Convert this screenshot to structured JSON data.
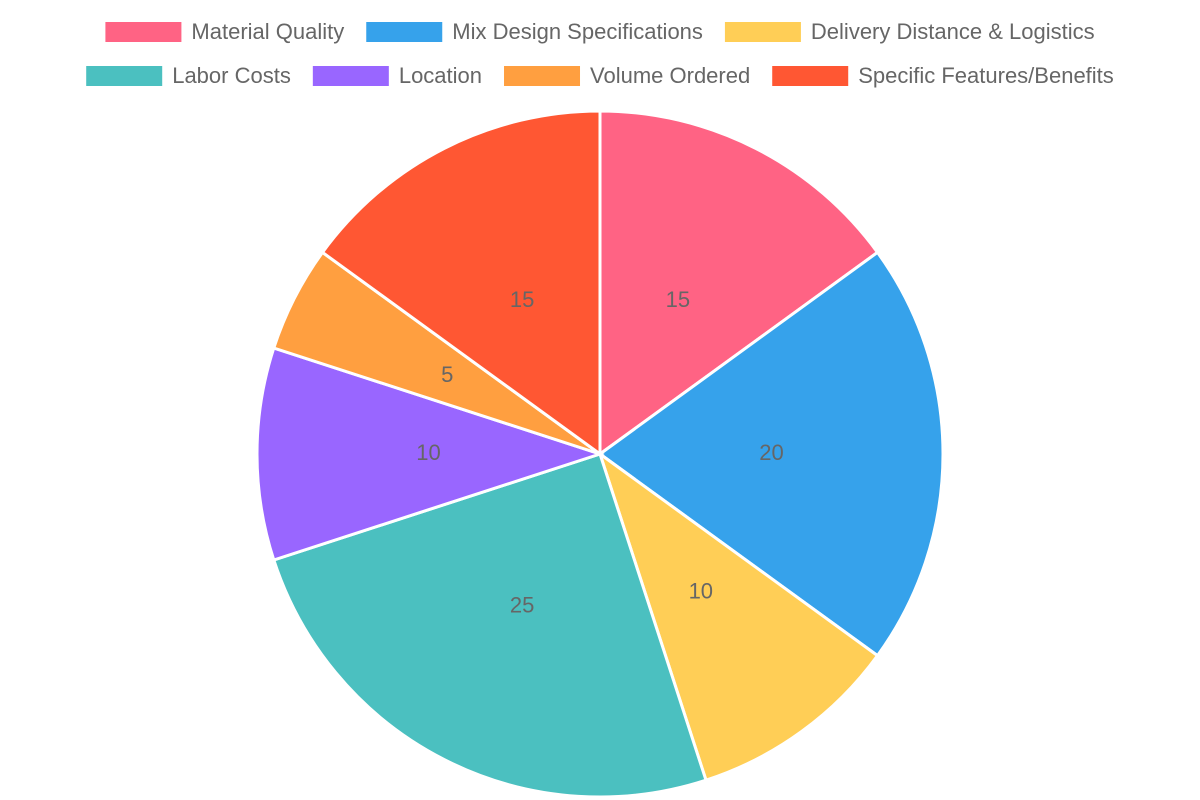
{
  "chart_data": {
    "type": "pie",
    "categories": [
      "Material Quality",
      "Mix Design Specifications",
      "Delivery Distance & Logistics",
      "Labor Costs",
      "Location",
      "Volume Ordered",
      "Specific Features/Benefits"
    ],
    "values": [
      15,
      20,
      10,
      25,
      10,
      5,
      15
    ],
    "colors": [
      "#ff6384",
      "#36a2eb",
      "#ffce56",
      "#4bc0c0",
      "#9966ff",
      "#ff9f40",
      "#ff5733"
    ],
    "legend": "top"
  }
}
